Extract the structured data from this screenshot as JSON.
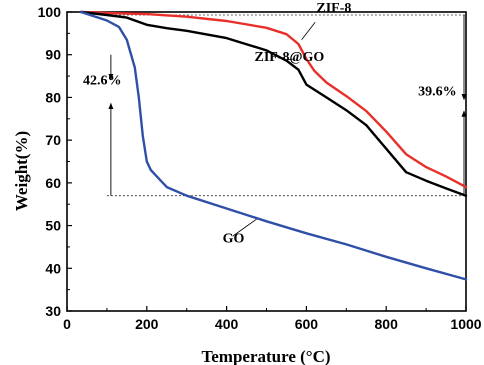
{
  "chart_data": {
    "type": "line",
    "title": "",
    "xlabel": "Temperature (°C)",
    "ylabel": "Weight(%)",
    "xlim": [
      0,
      1000
    ],
    "ylim": [
      30,
      100
    ],
    "xticks": [
      0,
      200,
      400,
      600,
      800,
      1000
    ],
    "yticks": [
      30,
      40,
      50,
      60,
      70,
      80,
      90,
      100
    ],
    "x_tick_labels": [
      "0",
      "200",
      "400",
      "600",
      "800",
      "1000"
    ],
    "y_tick_labels": [
      "30",
      "40",
      "50",
      "60",
      "70",
      "80",
      "90",
      "100"
    ],
    "grid": false,
    "series": [
      {
        "name": "ZIF-8",
        "color": "#e8302a",
        "x": [
          35,
          100,
          200,
          300,
          400,
          500,
          550,
          580,
          600,
          620,
          650,
          700,
          750,
          800,
          850,
          900,
          950,
          1000
        ],
        "y": [
          100,
          99.8,
          99.5,
          98.9,
          97.9,
          96.3,
          94.8,
          92.5,
          89,
          86.2,
          83.5,
          80.3,
          76.8,
          72,
          66.7,
          63.7,
          61.5,
          59
        ]
      },
      {
        "name": "ZIF-8@GO",
        "color": "#000000",
        "x": [
          35,
          100,
          150,
          200,
          250,
          300,
          400,
          500,
          550,
          580,
          600,
          650,
          700,
          750,
          800,
          850,
          900,
          950,
          1000
        ],
        "y": [
          100,
          99.3,
          98.7,
          97,
          96.2,
          95.6,
          93.9,
          91,
          88.6,
          86.5,
          83,
          80,
          77,
          73.5,
          68,
          62.5,
          60.5,
          58.7,
          57
        ]
      },
      {
        "name": "GO",
        "color": "#3050a8",
        "x": [
          35,
          100,
          130,
          150,
          170,
          180,
          190,
          200,
          210,
          220,
          250,
          300,
          400,
          500,
          600,
          700,
          800,
          900,
          1000
        ],
        "y": [
          100,
          98,
          96.5,
          93.5,
          87,
          80,
          71,
          65,
          63,
          62,
          59,
          57,
          54,
          51,
          48.2,
          45.6,
          42.7,
          40,
          37.4
        ]
      }
    ],
    "annotations": [
      {
        "text": "ZIF-8",
        "x": 625,
        "y": 100
      },
      {
        "text": "ZIF-8@GO",
        "x": 470,
        "y": 88.5
      },
      {
        "text": "GO",
        "x": 390,
        "y": 46
      },
      {
        "text": "42.6%",
        "x": 40,
        "y": 83
      },
      {
        "text": "39.6%",
        "x": 880,
        "y": 80.5
      }
    ],
    "reference_lines": {
      "top_y": 99.3,
      "bottom_y": 57,
      "top_x_range": [
        100,
        1000
      ],
      "bottom_x_range": [
        100,
        1000
      ],
      "left_arrow_x": 110,
      "right_arrow_x": 995
    }
  }
}
